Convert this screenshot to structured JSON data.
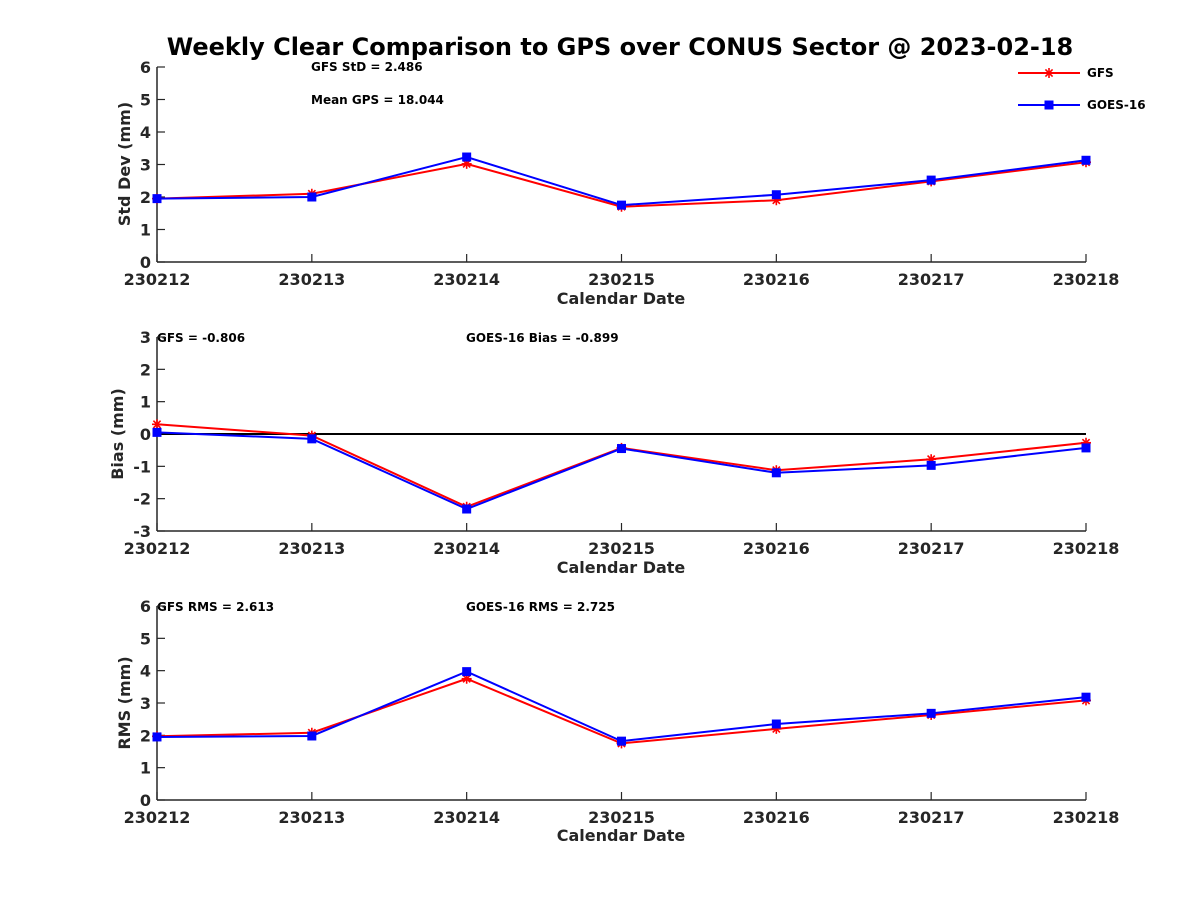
{
  "title": "Weekly Clear Comparison to GPS over CONUS Sector @ 2023-02-18",
  "legend": [
    {
      "name": "GFS",
      "color": "#ff0000",
      "marker": "asterisk"
    },
    {
      "name": "GOES-16",
      "color": "#0000ff",
      "marker": "square"
    }
  ],
  "chart_data": [
    {
      "type": "line",
      "categories": [
        "230212",
        "230213",
        "230214",
        "230215",
        "230216",
        "230217",
        "230218"
      ],
      "xlabel": "Calendar Date",
      "ylabel": "Std Dev (mm)",
      "ylim": [
        0,
        6
      ],
      "yticks": [
        "0",
        "1",
        "2",
        "3",
        "4",
        "5",
        "6"
      ],
      "annotations": [
        "GFS StD = 2.486",
        "Mean GPS = 18.044"
      ],
      "series": [
        {
          "name": "GFS",
          "color": "#ff0000",
          "values": [
            1.95,
            2.1,
            3.02,
            1.7,
            1.9,
            2.48,
            3.07
          ]
        },
        {
          "name": "GOES-16",
          "color": "#0000ff",
          "values": [
            1.95,
            2.0,
            3.23,
            1.75,
            2.07,
            2.52,
            3.13
          ]
        }
      ]
    },
    {
      "type": "line",
      "categories": [
        "230212",
        "230213",
        "230214",
        "230215",
        "230216",
        "230217",
        "230218"
      ],
      "xlabel": "Calendar Date",
      "ylabel": "Bias (mm)",
      "ylim": [
        -3,
        3
      ],
      "yticks": [
        "-3",
        "-2",
        "-1",
        "0",
        "1",
        "2",
        "3"
      ],
      "zero_line": true,
      "annotations": [
        "GFS = -0.806",
        "GOES-16 Bias  = -0.899"
      ],
      "series": [
        {
          "name": "GFS",
          "color": "#ff0000",
          "values": [
            0.3,
            -0.05,
            -2.25,
            -0.43,
            -1.12,
            -0.78,
            -0.27
          ]
        },
        {
          "name": "GOES-16",
          "color": "#0000ff",
          "values": [
            0.05,
            -0.15,
            -2.32,
            -0.45,
            -1.2,
            -0.97,
            -0.43
          ]
        }
      ]
    },
    {
      "type": "line",
      "categories": [
        "230212",
        "230213",
        "230214",
        "230215",
        "230216",
        "230217",
        "230218"
      ],
      "xlabel": "Calendar Date",
      "ylabel": "RMS (mm)",
      "ylim": [
        0,
        6
      ],
      "yticks": [
        "0",
        "1",
        "2",
        "3",
        "4",
        "5",
        "6"
      ],
      "annotations": [
        "GFS RMS = 2.613",
        "GOES-16 RMS = 2.725"
      ],
      "series": [
        {
          "name": "GFS",
          "color": "#ff0000",
          "values": [
            1.97,
            2.08,
            3.75,
            1.75,
            2.2,
            2.63,
            3.08
          ]
        },
        {
          "name": "GOES-16",
          "color": "#0000ff",
          "values": [
            1.95,
            1.98,
            3.97,
            1.82,
            2.35,
            2.68,
            3.18
          ]
        }
      ]
    }
  ]
}
